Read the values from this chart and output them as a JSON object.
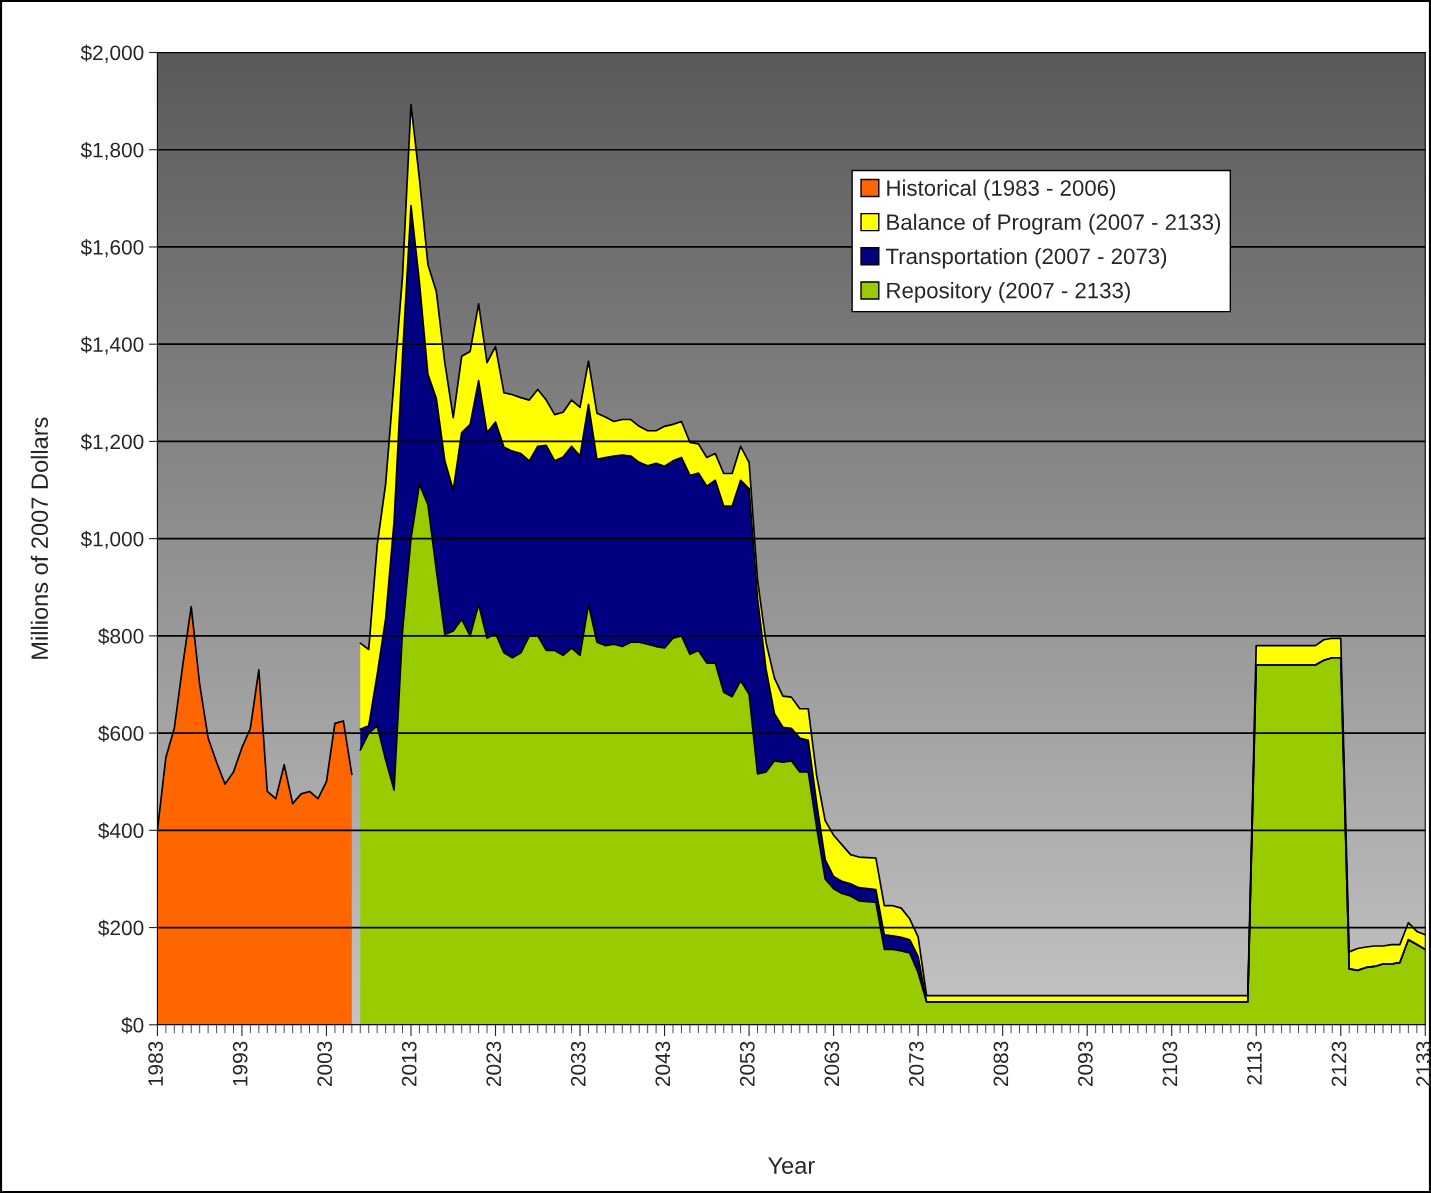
{
  "chart_data": {
    "type": "area",
    "xlabel": "Year",
    "ylabel": "Millions of 2007 Dollars",
    "stacked": true,
    "grid": "y",
    "legend": "top right",
    "xlim": [
      1983,
      2133
    ],
    "xticks": [
      1983,
      1993,
      2003,
      2013,
      2023,
      2033,
      2043,
      2053,
      2063,
      2073,
      2083,
      2093,
      2103,
      2113,
      2123,
      2133
    ],
    "ylim": [
      0,
      2000
    ],
    "yticks": [
      {
        "value": 0,
        "label": "$0"
      },
      {
        "value": 200,
        "label": "$200"
      },
      {
        "value": 400,
        "label": "$400"
      },
      {
        "value": 600,
        "label": "$600"
      },
      {
        "value": 800,
        "label": "$800"
      },
      {
        "value": 1000,
        "label": "$1,000"
      },
      {
        "value": 1200,
        "label": "$1,200"
      },
      {
        "value": 1400,
        "label": "$1,400"
      },
      {
        "value": 1600,
        "label": "$1,600"
      },
      {
        "value": 1800,
        "label": "$1,800"
      },
      {
        "value": 2000,
        "label": "$2,000"
      }
    ],
    "x": [
      1983,
      1984,
      1985,
      1986,
      1987,
      1988,
      1989,
      1990,
      1991,
      1992,
      1993,
      1994,
      1995,
      1996,
      1997,
      1998,
      1999,
      2000,
      2001,
      2002,
      2003,
      2004,
      2005,
      2006,
      2007,
      2008,
      2009,
      2010,
      2011,
      2012,
      2013,
      2014,
      2015,
      2016,
      2017,
      2018,
      2019,
      2020,
      2021,
      2022,
      2023,
      2024,
      2025,
      2026,
      2027,
      2028,
      2029,
      2030,
      2031,
      2032,
      2033,
      2034,
      2035,
      2036,
      2037,
      2038,
      2039,
      2040,
      2041,
      2042,
      2043,
      2044,
      2045,
      2046,
      2047,
      2048,
      2049,
      2050,
      2051,
      2052,
      2053,
      2054,
      2055,
      2056,
      2057,
      2058,
      2059,
      2060,
      2061,
      2062,
      2063,
      2064,
      2065,
      2066,
      2067,
      2068,
      2069,
      2070,
      2071,
      2072,
      2073,
      2074,
      2075,
      2076,
      2077,
      2078,
      2079,
      2080,
      2081,
      2082,
      2083,
      2084,
      2085,
      2086,
      2087,
      2088,
      2089,
      2090,
      2091,
      2092,
      2093,
      2094,
      2095,
      2096,
      2097,
      2098,
      2099,
      2100,
      2101,
      2102,
      2103,
      2104,
      2105,
      2106,
      2107,
      2108,
      2109,
      2110,
      2111,
      2112,
      2113,
      2114,
      2115,
      2116,
      2117,
      2118,
      2119,
      2120,
      2121,
      2122,
      2123,
      2124,
      2125,
      2126,
      2127,
      2128,
      2129,
      2130,
      2131,
      2132,
      2133
    ],
    "series": [
      {
        "name": "Historical (1983 - 2006)",
        "color": "#ff6600",
        "values": [
          400,
          550,
          610,
          740,
          860,
          700,
          590,
          540,
          495,
          520,
          570,
          610,
          730,
          480,
          465,
          535,
          455,
          475,
          480,
          465,
          500,
          620,
          625,
          515,
          null,
          null,
          null,
          null,
          null,
          null,
          null,
          null,
          null,
          null,
          null,
          null,
          null,
          null,
          null,
          null,
          null,
          null,
          null,
          null,
          null,
          null,
          null,
          null,
          null,
          null,
          null,
          null,
          null,
          null,
          null,
          null,
          null,
          null,
          null,
          null,
          null,
          null,
          null,
          null,
          null,
          null,
          null,
          null,
          null,
          null,
          null,
          null,
          null,
          null,
          null,
          null,
          null,
          null,
          null,
          null,
          null,
          null,
          null,
          null,
          null,
          null,
          null,
          null,
          null,
          null,
          null,
          null,
          null,
          null,
          null,
          null,
          null,
          null,
          null,
          null,
          null,
          null,
          null,
          null,
          null,
          null,
          null,
          null,
          null,
          null,
          null,
          null,
          null,
          null,
          null,
          null,
          null,
          null,
          null,
          null,
          null,
          null,
          null,
          null,
          null,
          null,
          null,
          null,
          null,
          null,
          null,
          null,
          null,
          null,
          null,
          null,
          null,
          null,
          null,
          null,
          null,
          null,
          null,
          null,
          null,
          null,
          null,
          null,
          null,
          null,
          null
        ]
      },
      {
        "name": "Repository (2007 - 2133)",
        "color": "#99cc00",
        "values": [
          null,
          null,
          null,
          null,
          null,
          null,
          null,
          null,
          null,
          null,
          null,
          null,
          null,
          null,
          null,
          null,
          null,
          null,
          null,
          null,
          null,
          null,
          null,
          null,
          565,
          600,
          615,
          545,
          483,
          810,
          1000,
          1112,
          1070,
          935,
          803,
          810,
          834,
          800,
          865,
          795,
          805,
          765,
          755,
          765,
          800,
          800,
          770,
          770,
          760,
          775,
          760,
          865,
          787,
          780,
          783,
          778,
          787,
          787,
          783,
          778,
          775,
          795,
          800,
          762,
          770,
          744,
          744,
          684,
          675,
          708,
          680,
          516,
          520,
          543,
          540,
          543,
          520,
          520,
          405,
          300,
          280,
          270,
          265,
          255,
          253,
          252,
          155,
          155,
          152,
          148,
          107,
          47,
          47,
          47,
          47,
          47,
          47,
          47,
          47,
          47,
          47,
          47,
          47,
          47,
          47,
          47,
          47,
          47,
          47,
          47,
          47,
          47,
          47,
          47,
          47,
          47,
          47,
          47,
          47,
          47,
          47,
          47,
          47,
          47,
          47,
          47,
          47,
          47,
          47,
          47,
          740,
          740,
          740,
          740,
          740,
          740,
          740,
          740,
          750,
          755,
          755,
          115,
          112,
          118,
          120,
          125,
          125,
          128,
          175,
          165,
          155
        ]
      },
      {
        "name": "Transportation (2007 - 2073)",
        "color": "#000080",
        "values": [
          null,
          null,
          null,
          null,
          null,
          null,
          null,
          null,
          null,
          null,
          null,
          null,
          null,
          null,
          null,
          null,
          null,
          null,
          null,
          null,
          null,
          null,
          null,
          null,
          43,
          15,
          105,
          290,
          552,
          565,
          685,
          415,
          268,
          353,
          357,
          290,
          384,
          435,
          460,
          423,
          435,
          423,
          425,
          410,
          360,
          390,
          422,
          390,
          408,
          415,
          410,
          411,
          376,
          387,
          387,
          394,
          383,
          370,
          367,
          377,
          374,
          365,
          367,
          368,
          365,
          364,
          376,
          383,
          392,
          412,
          423,
          361,
          212,
          97,
          72,
          67,
          70,
          65,
          50,
          40,
          25,
          25,
          25,
          27,
          27,
          26,
          30,
          28,
          28,
          27,
          33,
          0,
          0,
          0,
          0,
          0,
          0,
          0,
          0,
          0,
          0,
          0,
          0,
          0,
          0,
          0,
          0,
          0,
          0,
          0,
          0,
          0,
          0,
          0,
          0,
          0,
          0,
          0,
          0,
          0,
          0,
          0,
          0,
          0,
          0,
          0,
          0,
          0,
          0,
          0,
          0,
          0,
          0,
          0,
          0,
          0,
          0,
          0,
          0,
          0,
          0,
          0,
          0,
          0,
          0,
          0,
          0,
          0,
          0,
          0,
          0
        ]
      },
      {
        "name": "Balance of Program (2007 - 2133)",
        "color": "#ffff00",
        "values": [
          null,
          null,
          null,
          null,
          null,
          null,
          null,
          null,
          null,
          null,
          null,
          null,
          null,
          null,
          null,
          null,
          null,
          null,
          null,
          null,
          null,
          null,
          null,
          null,
          177,
          157,
          266,
          277,
          290,
          165,
          208,
          213,
          226,
          220,
          202,
          149,
          157,
          150,
          158,
          144,
          155,
          112,
          116,
          115,
          125,
          117,
          93,
          95,
          92,
          95,
          100,
          89,
          95,
          83,
          71,
          73,
          75,
          74,
          72,
          67,
          82,
          75,
          74,
          68,
          60,
          59,
          55,
          67,
          67,
          70,
          54,
          38,
          55,
          73,
          64,
          64,
          60,
          65,
          57,
          80,
          85,
          75,
          60,
          63,
          64,
          65,
          60,
          62,
          60,
          43,
          41,
          13,
          13,
          13,
          13,
          13,
          13,
          13,
          13,
          13,
          13,
          13,
          13,
          13,
          13,
          13,
          13,
          13,
          13,
          13,
          13,
          13,
          13,
          13,
          13,
          13,
          13,
          13,
          13,
          13,
          13,
          13,
          13,
          13,
          13,
          13,
          13,
          13,
          13,
          13,
          40,
          40,
          40,
          40,
          40,
          40,
          40,
          40,
          42,
          40,
          40,
          35,
          45,
          42,
          42,
          37,
          40,
          37,
          35,
          27,
          30
        ]
      }
    ]
  }
}
